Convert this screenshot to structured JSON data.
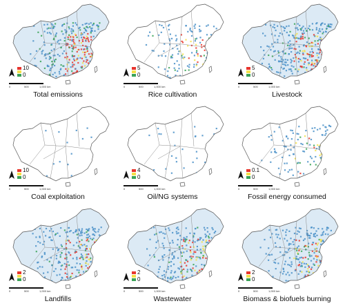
{
  "panels": [
    {
      "title": "Total emissions",
      "legend_max": "10",
      "legend_min": "0",
      "intensity": 1.0,
      "spread": 1.0
    },
    {
      "title": "Rice cultivation",
      "legend_max": "5",
      "legend_min": "0",
      "intensity": 0.8,
      "spread": 0.45
    },
    {
      "title": "Livestock",
      "legend_max": "5",
      "legend_min": "0",
      "intensity": 0.85,
      "spread": 1.0
    },
    {
      "title": "Coal exploitation",
      "legend_max": "10",
      "legend_min": "0",
      "intensity": 0.15,
      "spread": 0.05
    },
    {
      "title": "Oil/NG systems",
      "legend_max": "4",
      "legend_min": "0",
      "intensity": 0.1,
      "spread": 0.08
    },
    {
      "title": "Fossil energy consumed",
      "legend_max": "0.1",
      "legend_min": "0",
      "intensity": 0.6,
      "spread": 0.35
    },
    {
      "title": "Landfills",
      "legend_max": "2",
      "legend_min": "0",
      "intensity": 0.85,
      "spread": 0.75
    },
    {
      "title": "Wastewater",
      "legend_max": "2",
      "legend_min": "0",
      "intensity": 0.8,
      "spread": 0.75
    },
    {
      "title": "Biomass & biofuels burning",
      "legend_max": "2",
      "legend_min": "0",
      "intensity": 0.7,
      "spread": 0.8
    }
  ],
  "scale_labels": [
    "0",
    "500",
    "1,000 km"
  ],
  "colors": {
    "high": "#e8352c",
    "mid": "#f5e04a",
    "low": "#3aa357",
    "blue": "#4a90c8",
    "outline": "#555555"
  }
}
